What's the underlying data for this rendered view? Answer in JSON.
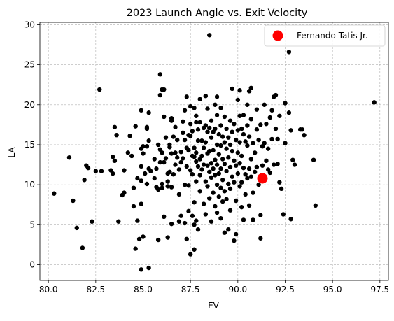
{
  "chart_data": {
    "type": "scatter",
    "title": "2023 Launch Angle vs. Exit Velocity",
    "xlabel": "EV",
    "ylabel": "LA",
    "xlim": [
      79.55,
      97.95
    ],
    "ylim": [
      -1.97,
      30.3
    ],
    "xticks": [
      "80.0",
      "82.5",
      "85.0",
      "87.5",
      "90.0",
      "92.5",
      "95.0",
      "97.5"
    ],
    "xtick_values": [
      80.0,
      82.5,
      85.0,
      87.5,
      90.0,
      92.5,
      95.0,
      97.5
    ],
    "yticks": [
      "0",
      "5",
      "10",
      "15",
      "20",
      "25",
      "30"
    ],
    "ytick_values": [
      0,
      5,
      10,
      15,
      20,
      25,
      30
    ],
    "grid": true,
    "grid_style": "dashed",
    "legend_position": "top-right",
    "colors": {
      "background_points": "#000000",
      "highlight": "#ff0000",
      "grid": "#b0b0b0"
    },
    "series": [
      {
        "role": "background",
        "points": [
          [
            80.3,
            8.9
          ],
          [
            81.1,
            13.4
          ],
          [
            81.3,
            8.0
          ],
          [
            81.5,
            4.6
          ],
          [
            81.8,
            2.1
          ],
          [
            81.9,
            10.6
          ],
          [
            82.0,
            12.4
          ],
          [
            82.1,
            12.1
          ],
          [
            82.3,
            5.4
          ],
          [
            82.5,
            11.7
          ],
          [
            82.7,
            21.9
          ],
          [
            82.8,
            11.7
          ],
          [
            83.3,
            11.8
          ],
          [
            83.4,
            13.5
          ],
          [
            83.4,
            11.4
          ],
          [
            83.5,
            13.0
          ],
          [
            83.5,
            17.2
          ],
          [
            83.6,
            16.2
          ],
          [
            83.7,
            5.4
          ],
          [
            83.9,
            8.7
          ],
          [
            84.0,
            9.0
          ],
          [
            84.0,
            11.8
          ],
          [
            84.2,
            14.0
          ],
          [
            84.3,
            16.1
          ],
          [
            84.4,
            13.6
          ],
          [
            84.5,
            7.3
          ],
          [
            84.5,
            9.6
          ],
          [
            84.6,
            2.0
          ],
          [
            84.6,
            17.3
          ],
          [
            84.7,
            10.8
          ],
          [
            84.7,
            5.5
          ],
          [
            84.8,
            3.2
          ],
          [
            84.9,
            19.3
          ],
          [
            84.9,
            14.5
          ],
          [
            84.9,
            12.3
          ],
          [
            84.9,
            10.5
          ],
          [
            84.9,
            7.6
          ],
          [
            84.9,
            -0.6
          ],
          [
            85.0,
            3.5
          ],
          [
            85.0,
            14.8
          ],
          [
            85.0,
            13.9
          ],
          [
            85.1,
            11.4
          ],
          [
            85.2,
            17.2
          ],
          [
            85.2,
            17.0
          ],
          [
            85.2,
            14.8
          ],
          [
            85.2,
            10.1
          ],
          [
            85.3,
            19.0
          ],
          [
            85.3,
            15.5
          ],
          [
            85.3,
            12.0
          ],
          [
            85.3,
            -0.4
          ],
          [
            85.4,
            11.7
          ],
          [
            85.6,
            13.2
          ],
          [
            85.6,
            10.8
          ],
          [
            85.7,
            12.0
          ],
          [
            85.7,
            9.7
          ],
          [
            85.8,
            9.4
          ],
          [
            85.8,
            3.1
          ],
          [
            85.8,
            15.0
          ],
          [
            85.9,
            23.8
          ],
          [
            85.9,
            21.2
          ],
          [
            85.9,
            14.4
          ],
          [
            85.9,
            12.8
          ],
          [
            86.0,
            21.9
          ],
          [
            86.0,
            14.0
          ],
          [
            86.0,
            10.1
          ],
          [
            86.0,
            9.6
          ],
          [
            86.1,
            21.9
          ],
          [
            86.1,
            18.5
          ],
          [
            86.1,
            12.8
          ],
          [
            86.1,
            6.0
          ],
          [
            86.2,
            15.9
          ],
          [
            86.2,
            13.3
          ],
          [
            86.3,
            11.4
          ],
          [
            86.3,
            10.4
          ],
          [
            86.3,
            9.8
          ],
          [
            86.3,
            3.4
          ],
          [
            86.4,
            15.0
          ],
          [
            86.4,
            14.7
          ],
          [
            86.4,
            11.6
          ],
          [
            86.5,
            18.3
          ],
          [
            86.5,
            18.0
          ],
          [
            86.5,
            13.9
          ],
          [
            86.5,
            9.7
          ],
          [
            86.5,
            5.1
          ],
          [
            86.6,
            16.0
          ],
          [
            86.6,
            11.3
          ],
          [
            86.7,
            17.2
          ],
          [
            86.7,
            14.0
          ],
          [
            86.7,
            12.5
          ],
          [
            86.8,
            15.6
          ],
          [
            86.8,
            13.4
          ],
          [
            86.9,
            11.9
          ],
          [
            86.9,
            8.8
          ],
          [
            86.9,
            5.4
          ],
          [
            87.0,
            14.1
          ],
          [
            87.0,
            12.8
          ],
          [
            87.0,
            6.1
          ],
          [
            87.1,
            17.9
          ],
          [
            87.1,
            16.5
          ],
          [
            87.1,
            13.3
          ],
          [
            87.2,
            19.3
          ],
          [
            87.2,
            15.6
          ],
          [
            87.2,
            10.0
          ],
          [
            87.2,
            5.2
          ],
          [
            87.3,
            21.0
          ],
          [
            87.3,
            14.6
          ],
          [
            87.3,
            12.3
          ],
          [
            87.3,
            3.2
          ],
          [
            87.4,
            16.2
          ],
          [
            87.4,
            14.3
          ],
          [
            87.4,
            9.9
          ],
          [
            87.4,
            6.7
          ],
          [
            87.5,
            19.8
          ],
          [
            87.5,
            17.6
          ],
          [
            87.5,
            16.1
          ],
          [
            87.5,
            11.8
          ],
          [
            87.5,
            1.3
          ],
          [
            87.6,
            16.7
          ],
          [
            87.6,
            13.6
          ],
          [
            87.6,
            11.3
          ],
          [
            87.6,
            6.1
          ],
          [
            87.7,
            19.6
          ],
          [
            87.7,
            14.6
          ],
          [
            87.7,
            13.5
          ],
          [
            87.7,
            7.8
          ],
          [
            87.7,
            5.0
          ],
          [
            87.7,
            1.9
          ],
          [
            87.8,
            18.6
          ],
          [
            87.8,
            17.8
          ],
          [
            87.8,
            14.0
          ],
          [
            87.8,
            12.9
          ],
          [
            87.8,
            10.4
          ],
          [
            87.8,
            5.5
          ],
          [
            87.9,
            16.9
          ],
          [
            87.9,
            15.5
          ],
          [
            87.9,
            12.3
          ],
          [
            87.9,
            4.4
          ],
          [
            88.0,
            20.7
          ],
          [
            88.0,
            17.8
          ],
          [
            88.0,
            13.2
          ],
          [
            88.0,
            11.2
          ],
          [
            88.0,
            9.2
          ],
          [
            88.1,
            15.5
          ],
          [
            88.1,
            13.6
          ],
          [
            88.1,
            11.9
          ],
          [
            88.2,
            17.1
          ],
          [
            88.2,
            14.6
          ],
          [
            88.2,
            12.5
          ],
          [
            88.2,
            7.6
          ],
          [
            88.3,
            21.1
          ],
          [
            88.3,
            17.4
          ],
          [
            88.3,
            15.3
          ],
          [
            88.3,
            10.4
          ],
          [
            88.3,
            6.3
          ],
          [
            88.4,
            19.5
          ],
          [
            88.4,
            16.6
          ],
          [
            88.4,
            13.9
          ],
          [
            88.4,
            12.4
          ],
          [
            88.4,
            9.8
          ],
          [
            88.5,
            28.7
          ],
          [
            88.5,
            17.1
          ],
          [
            88.5,
            14.2
          ],
          [
            88.5,
            11.6
          ],
          [
            88.5,
            8.3
          ],
          [
            88.6,
            18.0
          ],
          [
            88.6,
            15.9
          ],
          [
            88.6,
            12.7
          ],
          [
            88.6,
            10.9
          ],
          [
            88.6,
            5.4
          ],
          [
            88.7,
            16.6
          ],
          [
            88.7,
            14.3
          ],
          [
            88.7,
            12.0
          ],
          [
            88.7,
            9.0
          ],
          [
            88.8,
            20.0
          ],
          [
            88.8,
            17.0
          ],
          [
            88.8,
            13.1
          ],
          [
            88.8,
            11.2
          ],
          [
            88.8,
            7.3
          ],
          [
            88.9,
            21.0
          ],
          [
            88.9,
            18.7
          ],
          [
            88.9,
            15.0
          ],
          [
            88.9,
            12.5
          ],
          [
            88.9,
            10.0
          ],
          [
            88.9,
            6.5
          ],
          [
            89.0,
            16.3
          ],
          [
            89.0,
            13.8
          ],
          [
            89.0,
            11.4
          ],
          [
            89.0,
            8.5
          ],
          [
            89.1,
            19.6
          ],
          [
            89.1,
            17.4
          ],
          [
            89.1,
            14.9
          ],
          [
            89.1,
            12.0
          ],
          [
            89.1,
            9.6
          ],
          [
            89.1,
            5.8
          ],
          [
            89.2,
            16.0
          ],
          [
            89.2,
            13.2
          ],
          [
            89.2,
            10.6
          ],
          [
            89.2,
            7.9
          ],
          [
            89.3,
            18.5
          ],
          [
            89.3,
            15.3
          ],
          [
            89.3,
            12.6
          ],
          [
            89.3,
            9.2
          ],
          [
            89.3,
            4.0
          ],
          [
            89.4,
            17.0
          ],
          [
            89.4,
            14.5
          ],
          [
            89.4,
            11.7
          ],
          [
            89.4,
            8.2
          ],
          [
            89.5,
            15.9
          ],
          [
            89.5,
            13.4
          ],
          [
            89.5,
            10.1
          ],
          [
            89.5,
            4.4
          ],
          [
            89.6,
            18.0
          ],
          [
            89.6,
            15.0
          ],
          [
            89.6,
            12.2
          ],
          [
            89.6,
            9.5
          ],
          [
            89.6,
            6.8
          ],
          [
            89.7,
            22.0
          ],
          [
            89.7,
            16.6
          ],
          [
            89.7,
            14.2
          ],
          [
            89.7,
            11.0
          ],
          [
            89.8,
            17.6
          ],
          [
            89.8,
            13.0
          ],
          [
            89.8,
            10.3
          ],
          [
            89.8,
            3.0
          ],
          [
            89.9,
            15.6
          ],
          [
            89.9,
            12.4
          ],
          [
            89.9,
            8.0
          ],
          [
            89.9,
            3.8
          ],
          [
            90.0,
            20.6
          ],
          [
            90.0,
            16.8
          ],
          [
            90.0,
            14.0
          ],
          [
            90.0,
            11.4
          ],
          [
            90.1,
            21.8
          ],
          [
            90.1,
            18.6
          ],
          [
            90.1,
            15.3
          ],
          [
            90.1,
            12.7
          ],
          [
            90.1,
            9.8
          ],
          [
            90.2,
            17.0
          ],
          [
            90.2,
            13.6
          ],
          [
            90.2,
            10.3
          ],
          [
            90.2,
            7.2
          ],
          [
            90.3,
            18.7
          ],
          [
            90.3,
            16.3
          ],
          [
            90.3,
            12.1
          ],
          [
            90.3,
            5.6
          ],
          [
            90.4,
            15.4
          ],
          [
            90.4,
            11.3
          ],
          [
            90.4,
            8.8
          ],
          [
            90.5,
            20.0
          ],
          [
            90.5,
            17.4
          ],
          [
            90.5,
            14.9
          ],
          [
            90.5,
            10.8
          ],
          [
            90.6,
            21.7
          ],
          [
            90.6,
            16.0
          ],
          [
            90.6,
            12.0
          ],
          [
            90.6,
            7.4
          ],
          [
            90.7,
            22.1
          ],
          [
            90.7,
            18.2
          ],
          [
            90.7,
            13.2
          ],
          [
            90.7,
            11.0
          ],
          [
            90.8,
            15.2
          ],
          [
            90.8,
            9.0
          ],
          [
            90.8,
            5.6
          ],
          [
            90.9,
            14.0
          ],
          [
            90.9,
            11.6
          ],
          [
            91.0,
            19.4
          ],
          [
            91.0,
            16.9
          ],
          [
            91.0,
            12.2
          ],
          [
            91.1,
            15.6
          ],
          [
            91.1,
            10.0
          ],
          [
            91.2,
            17.5
          ],
          [
            91.2,
            6.2
          ],
          [
            91.2,
            3.3
          ],
          [
            91.3,
            14.8
          ],
          [
            91.3,
            12.4
          ],
          [
            91.4,
            20.0
          ],
          [
            91.4,
            15.2
          ],
          [
            91.4,
            11.0
          ],
          [
            91.5,
            17.6
          ],
          [
            91.5,
            13.0
          ],
          [
            91.6,
            14.5
          ],
          [
            91.6,
            11.9
          ],
          [
            91.7,
            18.4
          ],
          [
            91.7,
            11.5
          ],
          [
            91.8,
            19.3
          ],
          [
            91.8,
            15.7
          ],
          [
            91.9,
            21.0
          ],
          [
            91.9,
            12.5
          ],
          [
            92.0,
            21.2
          ],
          [
            92.0,
            17.0
          ],
          [
            92.1,
            15.7
          ],
          [
            92.1,
            12.6
          ],
          [
            92.2,
            10.3
          ],
          [
            92.2,
            18.6
          ],
          [
            92.3,
            9.5
          ],
          [
            92.4,
            6.3
          ],
          [
            92.5,
            20.2
          ],
          [
            92.5,
            15.2
          ],
          [
            92.7,
            26.6
          ],
          [
            92.7,
            19.0
          ],
          [
            92.8,
            16.8
          ],
          [
            92.8,
            5.7
          ],
          [
            92.9,
            13.1
          ],
          [
            93.0,
            12.5
          ],
          [
            93.3,
            16.9
          ],
          [
            93.4,
            16.9
          ],
          [
            93.5,
            16.2
          ],
          [
            94.0,
            13.1
          ],
          [
            94.1,
            7.4
          ],
          [
            97.2,
            20.3
          ]
        ]
      },
      {
        "name": "Fernando Tatis Jr.",
        "role": "highlight",
        "points": [
          [
            91.3,
            10.8
          ]
        ]
      }
    ]
  }
}
